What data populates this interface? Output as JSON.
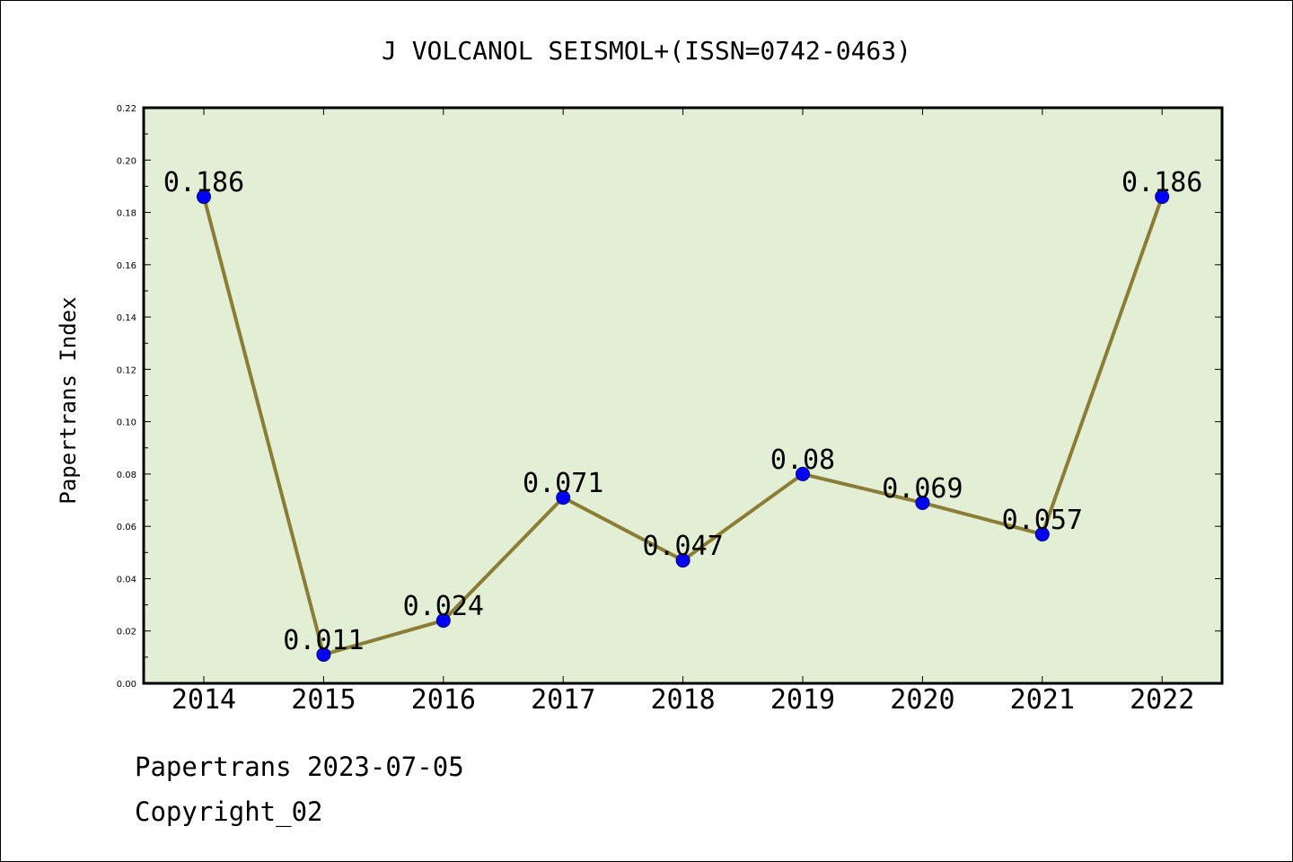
{
  "chart_data": {
    "type": "line",
    "title": "J VOLCANOL SEISMOL+(ISSN=0742-0463)",
    "xlabel": "",
    "ylabel": "Papertrans Index",
    "categories": [
      "2014",
      "2015",
      "2016",
      "2017",
      "2018",
      "2019",
      "2020",
      "2021",
      "2022"
    ],
    "series": [
      {
        "values": [
          0.186,
          0.011,
          0.024,
          0.071,
          0.047,
          0.08,
          0.069,
          0.057,
          0.186
        ],
        "labels": [
          "0.186",
          "0.011",
          "0.024",
          "0.071",
          "0.047",
          "0.08",
          "0.069",
          "0.057",
          "0.186"
        ]
      }
    ],
    "ylim": [
      0,
      0.22
    ],
    "yticks": [
      "0.00",
      "0.02",
      "0.04",
      "0.06",
      "0.08",
      "0.10",
      "0.12",
      "0.14",
      "0.16",
      "0.18",
      "0.20",
      "0.22"
    ],
    "grid": false,
    "legend": "none",
    "colors": {
      "plot_background": "#e2efd4",
      "line": "#8b7d35",
      "marker": "#0000ff",
      "marker_edge": "#00007a"
    }
  },
  "footer": {
    "line1": "Papertrans 2023-07-05",
    "line2": "Copyright_02"
  }
}
